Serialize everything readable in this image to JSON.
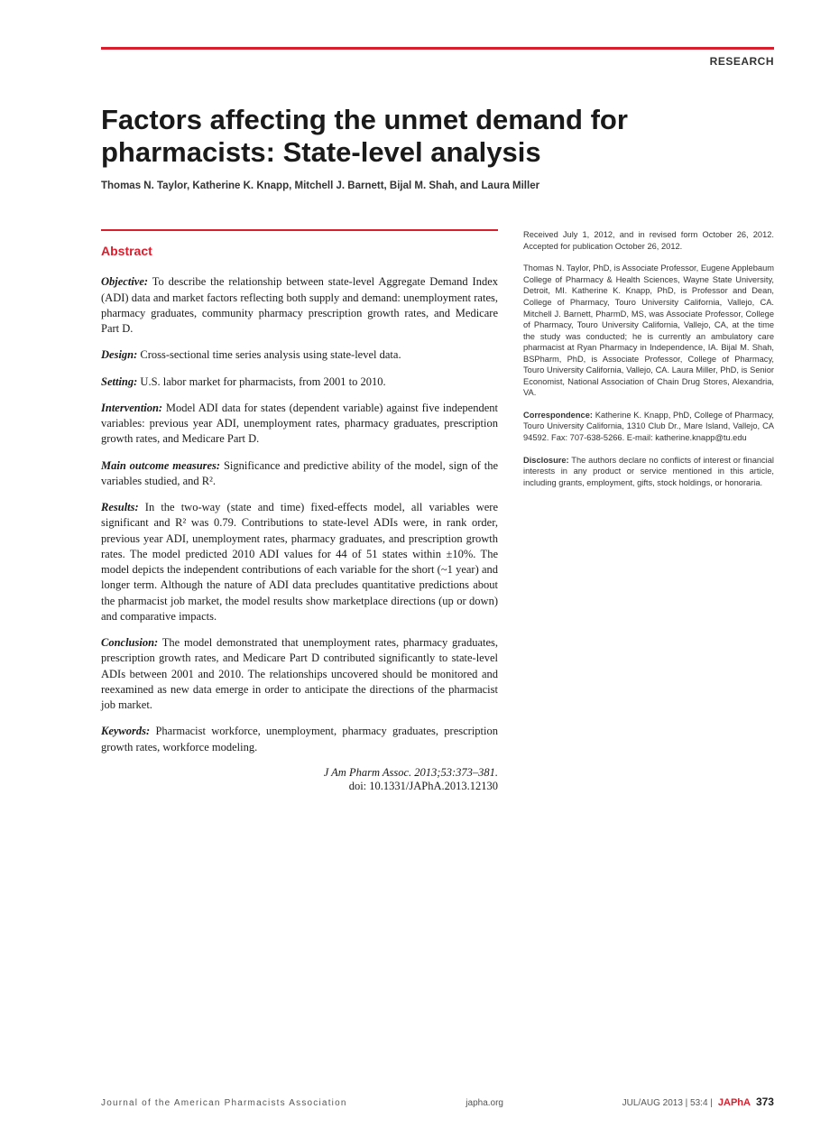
{
  "colors": {
    "accent": "#d91e2e",
    "text": "#1a1a1a",
    "muted": "#333333",
    "footer_text": "#555555",
    "background": "#ffffff"
  },
  "typography": {
    "title_fontsize": 31,
    "title_weight": 900,
    "body_fontsize": 12.5,
    "sidebar_fontsize": 9.3,
    "footer_fontsize": 10
  },
  "header": {
    "section_label": "RESEARCH",
    "title": "Factors affecting the unmet demand for pharmacists: State-level analysis",
    "authors": "Thomas N. Taylor, Katherine K. Knapp, Mitchell J. Barnett, Bijal M. Shah, and Laura Miller"
  },
  "abstract": {
    "heading": "Abstract",
    "objective_label": "Objective:",
    "objective_text": " To describe the relationship between state-level Aggregate Demand Index (ADI) data and market factors reflecting both supply and demand: unemployment rates, pharmacy graduates, community pharmacy prescription growth rates, and Medicare Part D.",
    "design_label": "Design:",
    "design_text": " Cross-sectional time series analysis using state-level data.",
    "setting_label": "Setting:",
    "setting_text": " U.S. labor market for pharmacists, from 2001 to 2010.",
    "intervention_label": "Intervention:",
    "intervention_text": " Model ADI data for states (dependent variable) against five independent variables: previous year ADI, unemployment rates, pharmacy graduates, prescription growth rates, and Medicare Part D.",
    "measures_label": "Main outcome measures:",
    "measures_text": " Significance and predictive ability of the model, sign of the variables studied, and R².",
    "results_label": "Results:",
    "results_text": " In the two-way (state and time) fixed-effects model, all variables were significant and R² was 0.79. Contributions to state-level ADIs were, in rank order, previous year ADI, unemployment rates, pharmacy graduates, and prescription growth rates. The model predicted 2010 ADI values for 44 of 51 states within ±10%. The model depicts the independent contributions of each variable for the short (~1 year) and longer term. Although the nature of ADI data precludes quantitative predictions about the pharmacist job market, the model results show marketplace directions (up or down) and comparative impacts.",
    "conclusion_label": "Conclusion:",
    "conclusion_text": " The model demonstrated that unemployment rates, pharmacy graduates, prescription growth rates, and Medicare Part D contributed significantly to state-level ADIs between 2001 and 2010. The relationships uncovered should be monitored and reexamined as new data emerge in order to anticipate the directions of the pharmacist job market.",
    "keywords_label": "Keywords:",
    "keywords_text": " Pharmacist workforce, unemployment, pharmacy graduates, prescription growth rates, workforce modeling.",
    "citation_line1": "J Am Pharm Assoc. 2013;53:373–381.",
    "citation_line2": "doi: 10.1331/JAPhA.2013.12130"
  },
  "sidebar": {
    "received": "Received July 1, 2012, and in revised form October 26, 2012. Accepted for publication October 26, 2012.",
    "bios": "Thomas N. Taylor, PhD, is Associate Professor, Eugene Applebaum College of Pharmacy & Health Sciences, Wayne State University, Detroit, MI. Katherine K. Knapp, PhD, is Professor and Dean, College of Pharmacy, Touro University California, Vallejo, CA. Mitchell J. Barnett, PharmD, MS, was Associate Professor, College of Pharmacy, Touro University California, Vallejo, CA, at the time the study was conducted; he is currently an ambulatory care pharmacist at Ryan Pharmacy in Independence, IA. Bijal M. Shah, BSPharm, PhD, is Associate Professor, College of Pharmacy, Touro University California, Vallejo, CA. Laura Miller, PhD, is Senior Economist, National Association of Chain Drug Stores, Alexandria, VA.",
    "correspondence_label": "Correspondence:",
    "correspondence_text": " Katherine K. Knapp, PhD, College of Pharmacy, Touro University California, 1310 Club Dr., Mare Island, Vallejo, CA 94592. Fax: 707-638-5266. E-mail: katherine.knapp@tu.edu",
    "disclosure_label": "Disclosure:",
    "disclosure_text": " The authors declare no conflicts of interest or financial interests in any product or service mentioned in this article, including grants, employment, gifts, stock holdings, or honoraria."
  },
  "footer": {
    "journal": "Journal of the American Pharmacists Association",
    "site": "japha.org",
    "issue": "JUL/AUG 2013 | 53:4 |",
    "brand": "JAPhA",
    "page": "373"
  }
}
